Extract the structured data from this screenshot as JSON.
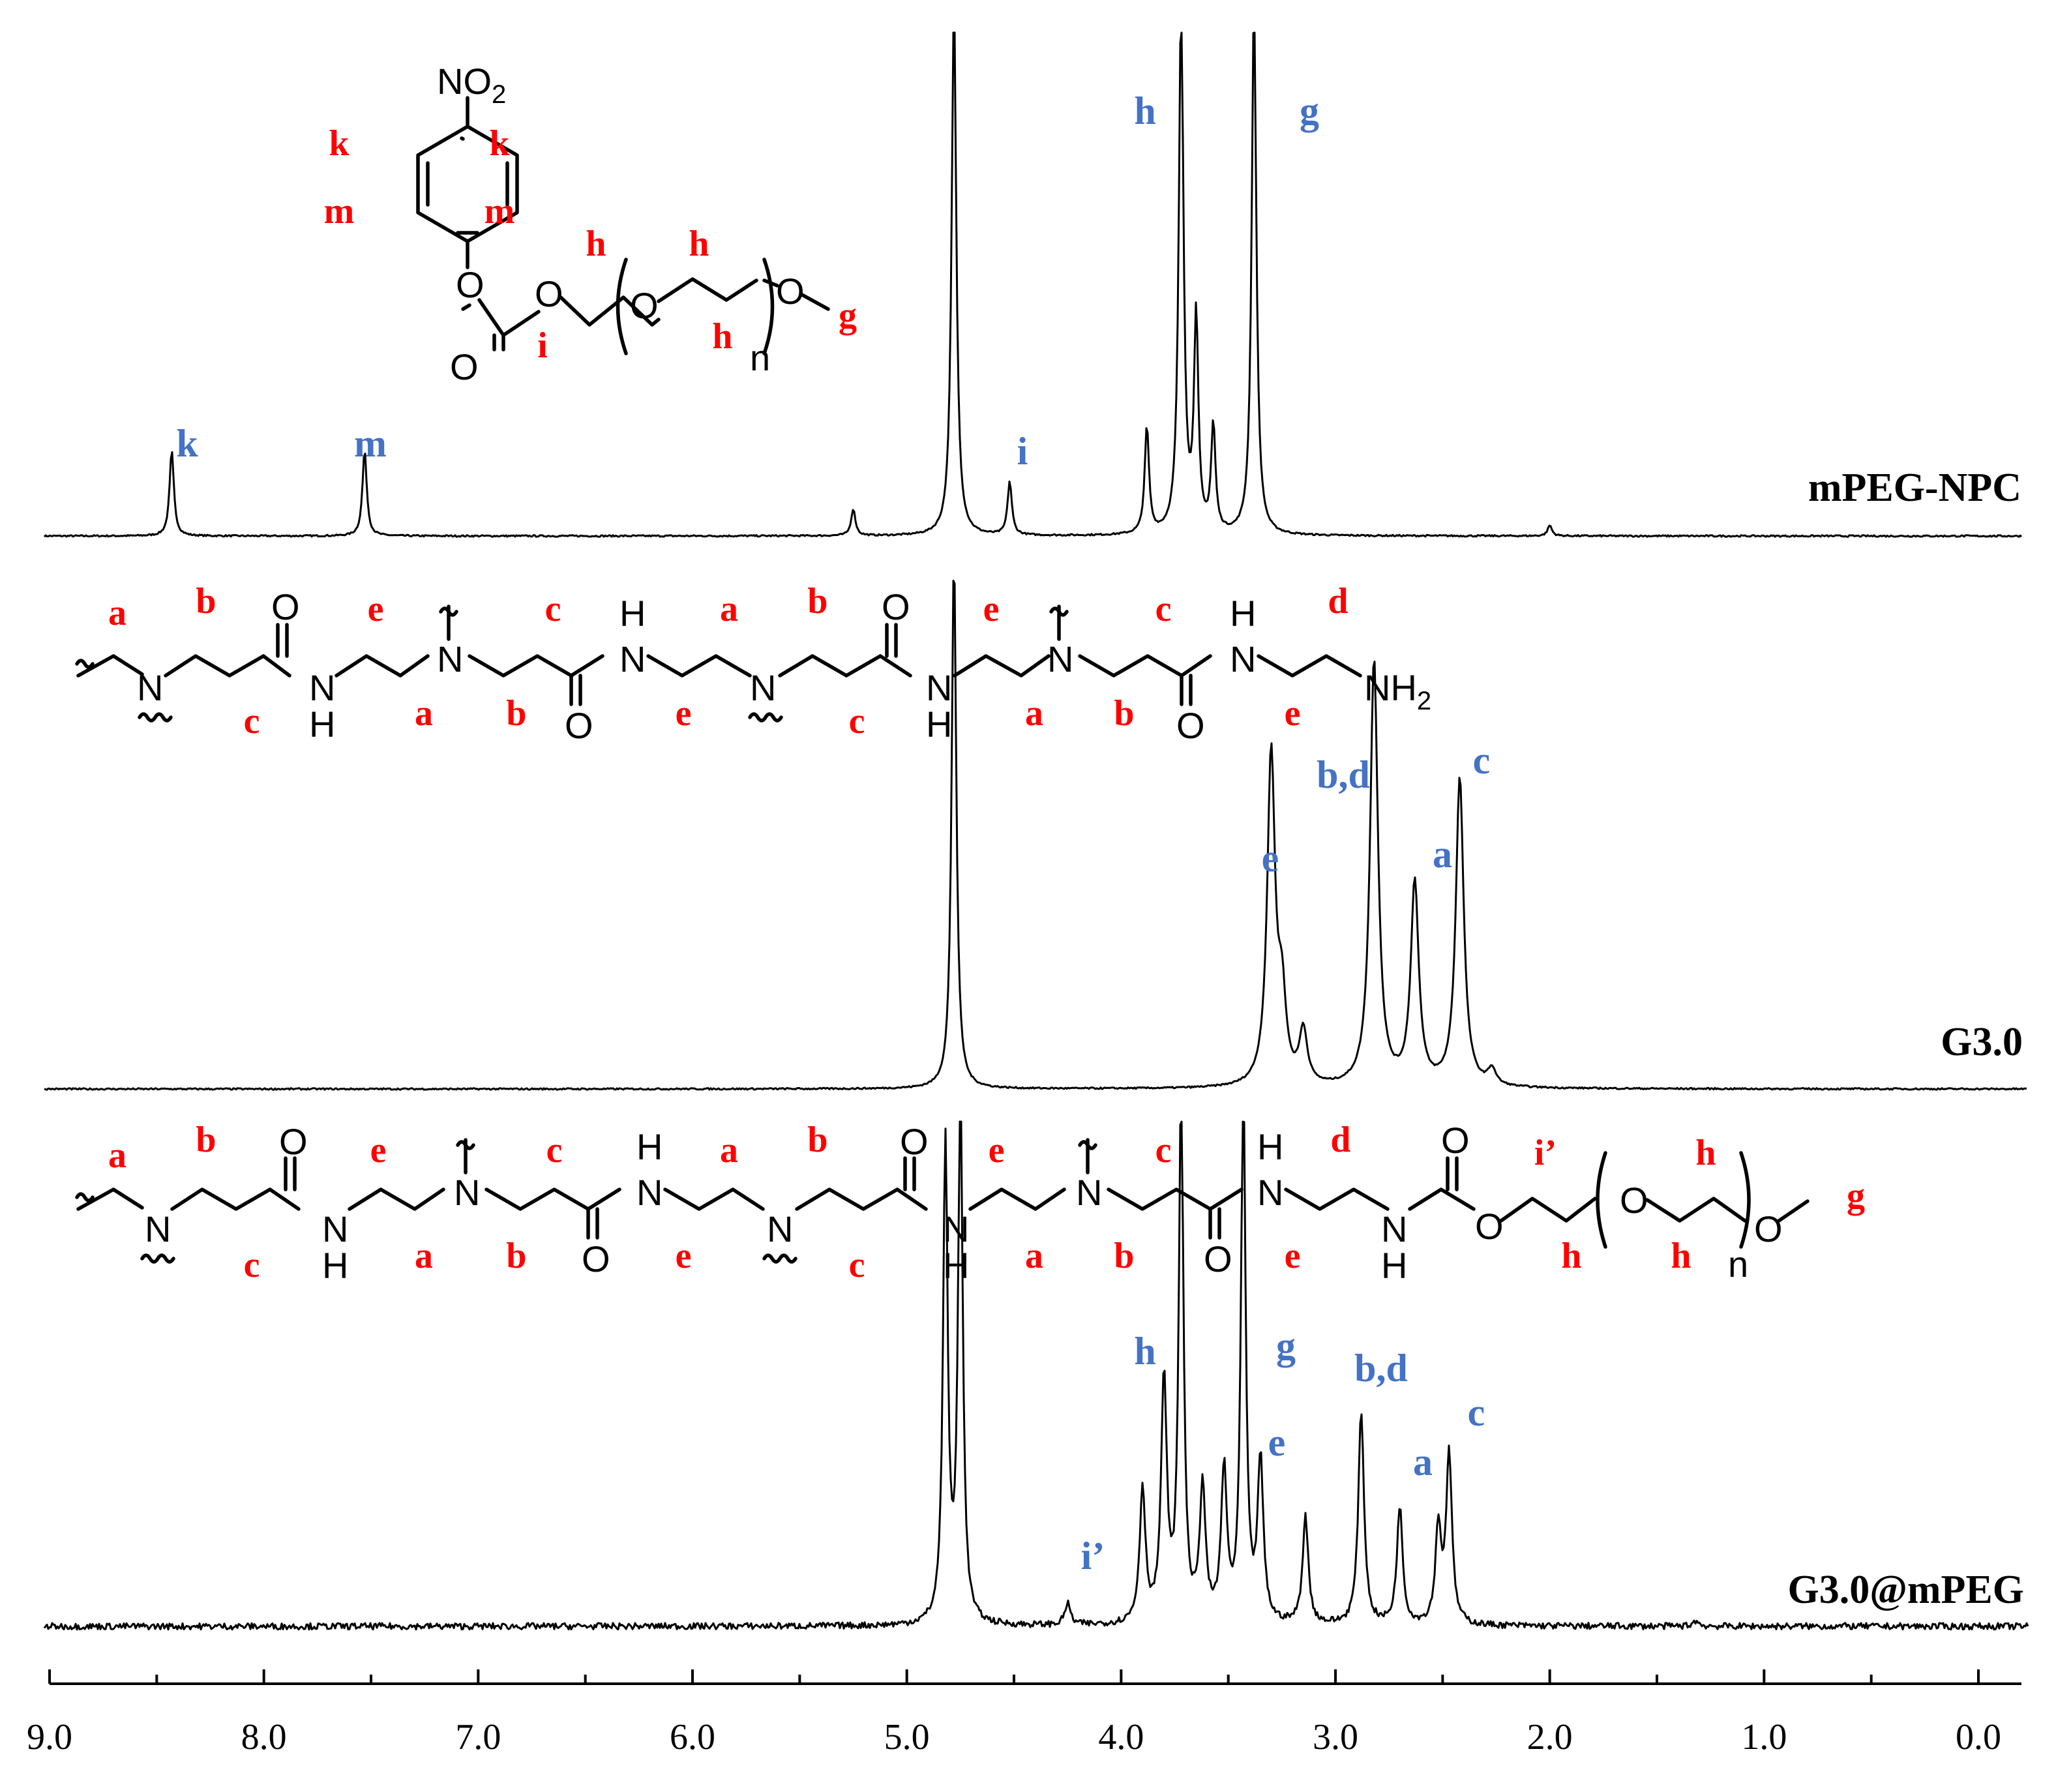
{
  "chart_data": {
    "type": "line",
    "title": "",
    "xlabel": "",
    "ylabel": "",
    "xlim": [
      9.0,
      0.0
    ],
    "x_ticks": [
      "9.0",
      "8.0",
      "7.0",
      "6.0",
      "5.0",
      "4.0",
      "3.0",
      "2.0",
      "1.0",
      "0.0"
    ],
    "grid": false,
    "series": [
      {
        "name": "mPEG-NPC",
        "peaks": [
          {
            "shift": 8.43,
            "height": 0.16,
            "label": "k"
          },
          {
            "shift": 7.53,
            "height": 0.16,
            "label": "m"
          },
          {
            "shift": 5.25,
            "height": 0.05,
            "label": ""
          },
          {
            "shift": 4.78,
            "height": 1.0,
            "label": ""
          },
          {
            "shift": 4.52,
            "height": 0.1,
            "label": "i"
          },
          {
            "shift": 3.88,
            "height": 0.2,
            "label": ""
          },
          {
            "shift": 3.72,
            "height": 1.0,
            "label": "h"
          },
          {
            "shift": 3.65,
            "height": 0.4,
            "label": ""
          },
          {
            "shift": 3.57,
            "height": 0.2,
            "label": ""
          },
          {
            "shift": 3.38,
            "height": 1.0,
            "label": "g"
          },
          {
            "shift": 2.0,
            "height": 0.02,
            "label": ""
          }
        ]
      },
      {
        "name": "G3.0",
        "peaks": [
          {
            "shift": 4.78,
            "height": 1.0,
            "label": ""
          },
          {
            "shift": 3.3,
            "height": 0.62,
            "label": "e"
          },
          {
            "shift": 3.25,
            "height": 0.15,
            "label": ""
          },
          {
            "shift": 3.15,
            "height": 0.1,
            "label": ""
          },
          {
            "shift": 2.82,
            "height": 0.8,
            "label": "b,d"
          },
          {
            "shift": 2.63,
            "height": 0.38,
            "label": "a"
          },
          {
            "shift": 2.42,
            "height": 0.58,
            "label": "c"
          },
          {
            "shift": 2.27,
            "height": 0.03,
            "label": ""
          }
        ]
      },
      {
        "name": "G3.0@mPEG",
        "peaks": [
          {
            "shift": 4.82,
            "height": 0.9,
            "label": ""
          },
          {
            "shift": 4.75,
            "height": 1.0,
            "label": ""
          },
          {
            "shift": 4.25,
            "height": 0.04,
            "label": "i’"
          },
          {
            "shift": 3.9,
            "height": 0.25,
            "label": ""
          },
          {
            "shift": 3.8,
            "height": 0.45,
            "label": "h"
          },
          {
            "shift": 3.72,
            "height": 1.0,
            "label": ""
          },
          {
            "shift": 3.62,
            "height": 0.25,
            "label": ""
          },
          {
            "shift": 3.52,
            "height": 0.28,
            "label": ""
          },
          {
            "shift": 3.43,
            "height": 1.0,
            "label": "g"
          },
          {
            "shift": 3.35,
            "height": 0.3,
            "label": "e"
          },
          {
            "shift": 3.14,
            "height": 0.2,
            "label": ""
          },
          {
            "shift": 2.88,
            "height": 0.4,
            "label": "b,d"
          },
          {
            "shift": 2.7,
            "height": 0.22,
            "label": "a"
          },
          {
            "shift": 2.52,
            "height": 0.18,
            "label": ""
          },
          {
            "shift": 2.47,
            "height": 0.32,
            "label": "c"
          },
          {
            "shift": 1.32,
            "height": 0.01,
            "label": ""
          }
        ]
      }
    ]
  },
  "structures": {
    "npc": {
      "atoms": {
        "nitro": "NO",
        "nitro_sub": "2",
        "ether_o1": "O",
        "ether_o2": "O",
        "carbonyl_o": "O",
        "peg_o": "O",
        "end_o": "O",
        "repeat": "n"
      },
      "labels": {
        "k_left": "k",
        "k_right": "k",
        "m_left": "m",
        "m_right": "m",
        "i": "i",
        "h1": "h",
        "h2": "h",
        "h3": "h",
        "g": "g"
      }
    },
    "g30": {
      "atoms": {
        "n1": "N",
        "n2": "N",
        "n3": "N",
        "n4": "N",
        "nh1": "N",
        "h1": "H",
        "nh2": "N",
        "h2": "H",
        "nh3": "N",
        "h3": "H",
        "nh4": "N",
        "h4": "H",
        "o1": "O",
        "o2": "O",
        "o3": "O",
        "o4": "O",
        "amine": "NH",
        "amine_sub": "2"
      },
      "labels": {
        "top": [
          "a",
          "b",
          "e",
          "c",
          "a",
          "b",
          "e",
          "c",
          "d"
        ],
        "bottom": [
          "c",
          "a",
          "b",
          "e",
          "c",
          "a",
          "b",
          "e"
        ]
      }
    },
    "g30peg": {
      "atoms": {
        "n1": "N",
        "n2": "N",
        "n3": "N",
        "n4": "N",
        "nh1": "N",
        "h1": "H",
        "nh2": "N",
        "h2": "H",
        "nh3": "N",
        "h3": "H",
        "nh4": "N",
        "h4": "H",
        "nh5": "N",
        "h5": "H",
        "o1": "O",
        "o2": "O",
        "o3": "O",
        "o4": "O",
        "o5": "O",
        "o6": "O",
        "o7": "O",
        "o8": "O",
        "repeat": "n"
      },
      "labels": {
        "top": [
          "a",
          "b",
          "e",
          "c",
          "a",
          "b",
          "e",
          "c",
          "d",
          "i’",
          "h",
          "g"
        ],
        "bottom": [
          "c",
          "a",
          "b",
          "e",
          "c",
          "a",
          "b",
          "e",
          "h",
          "h"
        ]
      }
    }
  }
}
